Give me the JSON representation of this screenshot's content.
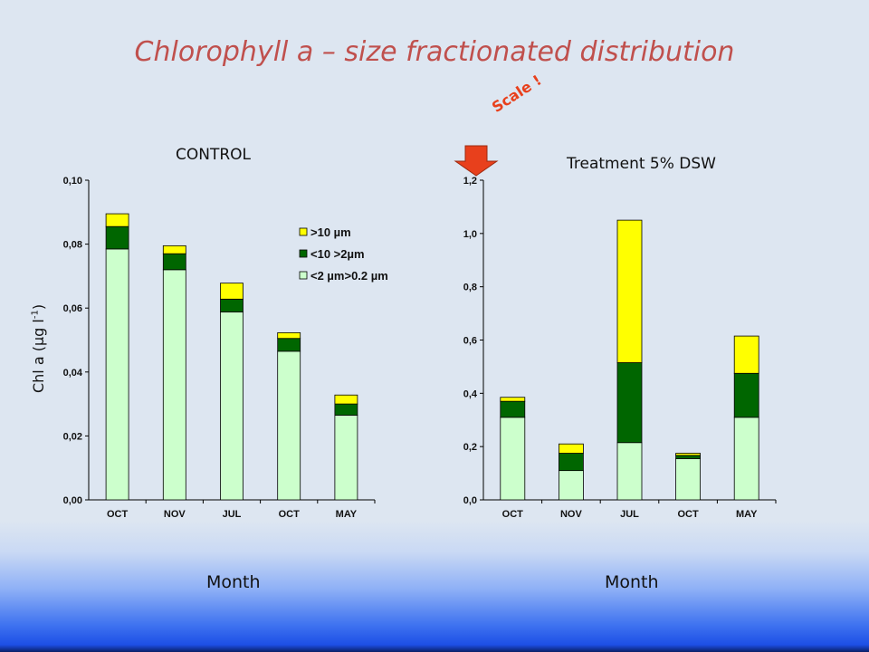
{
  "slide": {
    "title": "Chlorophyll a – size fractionated distribution",
    "y_axis_label": "Chl a (µg l-1)",
    "x_axis_label_left": "Month",
    "x_axis_label_right": "Month",
    "scale_note": "Scale !",
    "scale_arrow_icon": "down-arrow-icon"
  },
  "chart_data": [
    {
      "type": "bar",
      "stacked": true,
      "title": "CONTROL",
      "categories": [
        "OCT",
        "NOV",
        "JUL",
        "OCT",
        "MAY"
      ],
      "ylim": [
        0,
        0.1
      ],
      "yticks": [
        "0,00",
        "0,02",
        "0,04",
        "0,06",
        "0,08",
        "0,10"
      ],
      "legend_position": "top-right",
      "series": [
        {
          "name": "<2 µm>0.2 µm",
          "color": "#ccffcc",
          "values": [
            0.0785,
            0.072,
            0.0588,
            0.0465,
            0.0265
          ]
        },
        {
          "name": "<10 >2µm",
          "color": "#006600",
          "values": [
            0.007,
            0.005,
            0.004,
            0.004,
            0.0035
          ]
        },
        {
          "name": ">10 µm",
          "color": "#ffff00",
          "values": [
            0.004,
            0.0025,
            0.005,
            0.0018,
            0.0028
          ]
        }
      ]
    },
    {
      "type": "bar",
      "stacked": true,
      "title": "Treatment 5% DSW",
      "categories": [
        "OCT",
        "NOV",
        "JUL",
        "OCT",
        "MAY"
      ],
      "ylim": [
        0,
        1.2
      ],
      "yticks": [
        "0,0",
        "0,2",
        "0,4",
        "0,6",
        "0,8",
        "1,0",
        "1,2"
      ],
      "series": [
        {
          "name": "<2 µm>0.2 µm",
          "color": "#ccffcc",
          "values": [
            0.31,
            0.11,
            0.215,
            0.155,
            0.31
          ]
        },
        {
          "name": "<10 >2µm",
          "color": "#006600",
          "values": [
            0.06,
            0.065,
            0.3,
            0.012,
            0.165
          ]
        },
        {
          "name": ">10 µm",
          "color": "#ffff00",
          "values": [
            0.015,
            0.035,
            0.535,
            0.008,
            0.14
          ]
        }
      ]
    }
  ]
}
